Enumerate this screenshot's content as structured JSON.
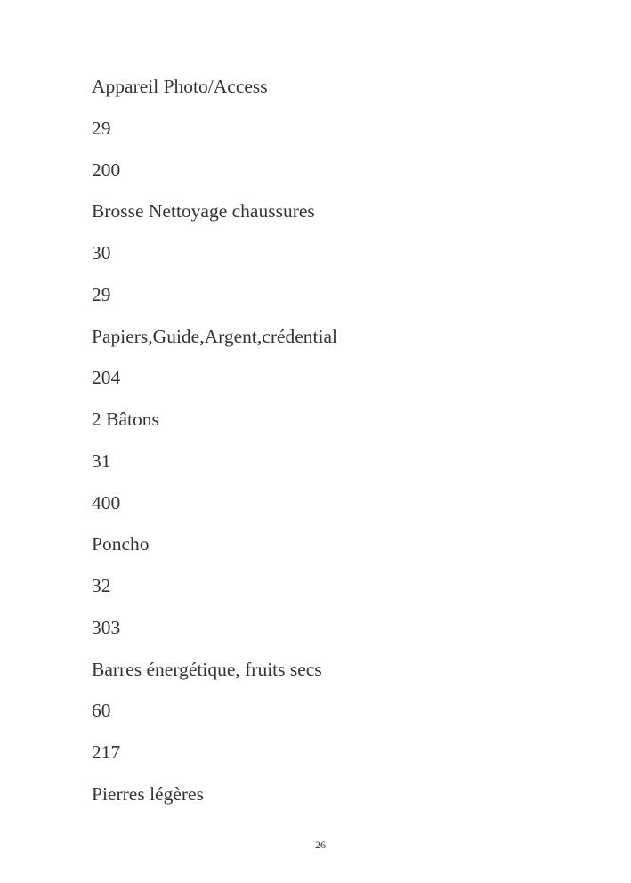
{
  "lines": [
    "Appareil Photo/Access",
    "29",
    "200",
    "Brosse Nettoyage chaussures",
    "30",
    "29",
    "Papiers,Guide,Argent,crédential",
    "204",
    "2 Bâtons",
    "31",
    "400",
    "Poncho",
    "32",
    "303",
    "Barres énergétique, fruits secs",
    "60",
    "217",
    "Pierres légères"
  ],
  "page_number": "26"
}
